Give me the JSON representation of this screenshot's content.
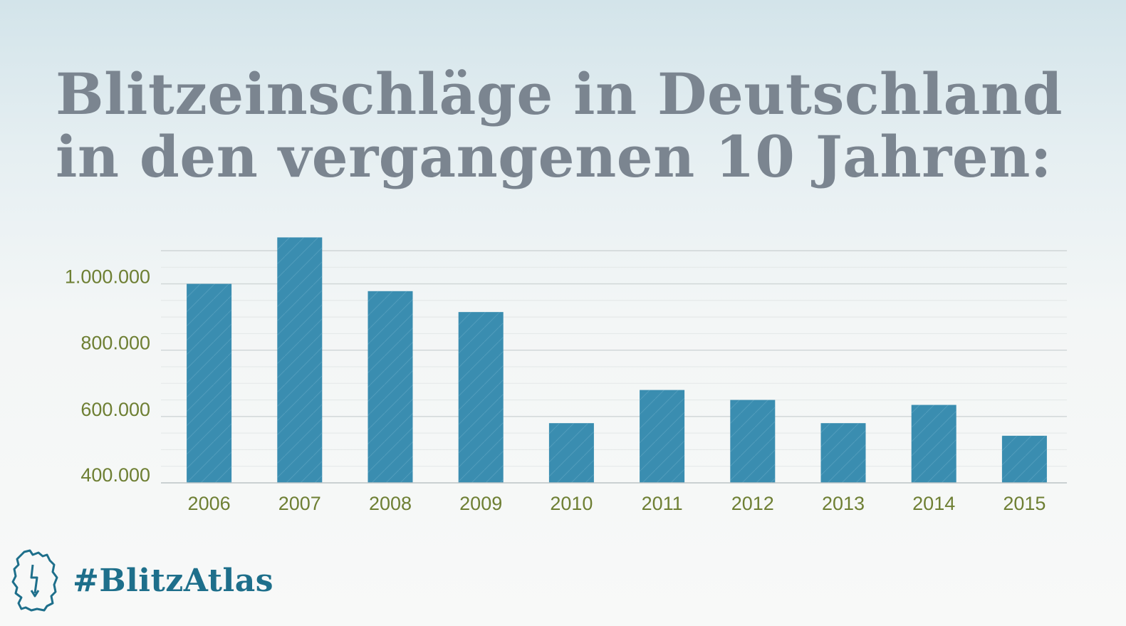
{
  "title_line1": "Blitzeinschläge in Deutschland",
  "title_line2": "in den vergangenen 10 Jahren:",
  "brand": {
    "hashtag": "#BlitzAtlas",
    "icon": "germany-map-lightning-icon"
  },
  "colors": {
    "bar": "#3a8db0",
    "bar_hatch": "#63a9c6",
    "tick_label": "#6e7f33",
    "title": "#7b8590",
    "brand": "#1e6f8b",
    "grid": "#d9dddd"
  },
  "chart_data": {
    "type": "bar",
    "categories": [
      "2006",
      "2007",
      "2008",
      "2009",
      "2010",
      "2011",
      "2012",
      "2013",
      "2014",
      "2015"
    ],
    "values": [
      1000000,
      1140000,
      978000,
      915000,
      580000,
      680000,
      650000,
      580000,
      635000,
      542000
    ],
    "yticks": [
      400000,
      600000,
      800000,
      1000000
    ],
    "ytick_labels": [
      "400.000",
      "600.000",
      "800.000",
      "1.000.000"
    ],
    "ylim": [
      400000,
      1100000
    ],
    "grid": true,
    "title": "",
    "xlabel": "",
    "ylabel": ""
  }
}
